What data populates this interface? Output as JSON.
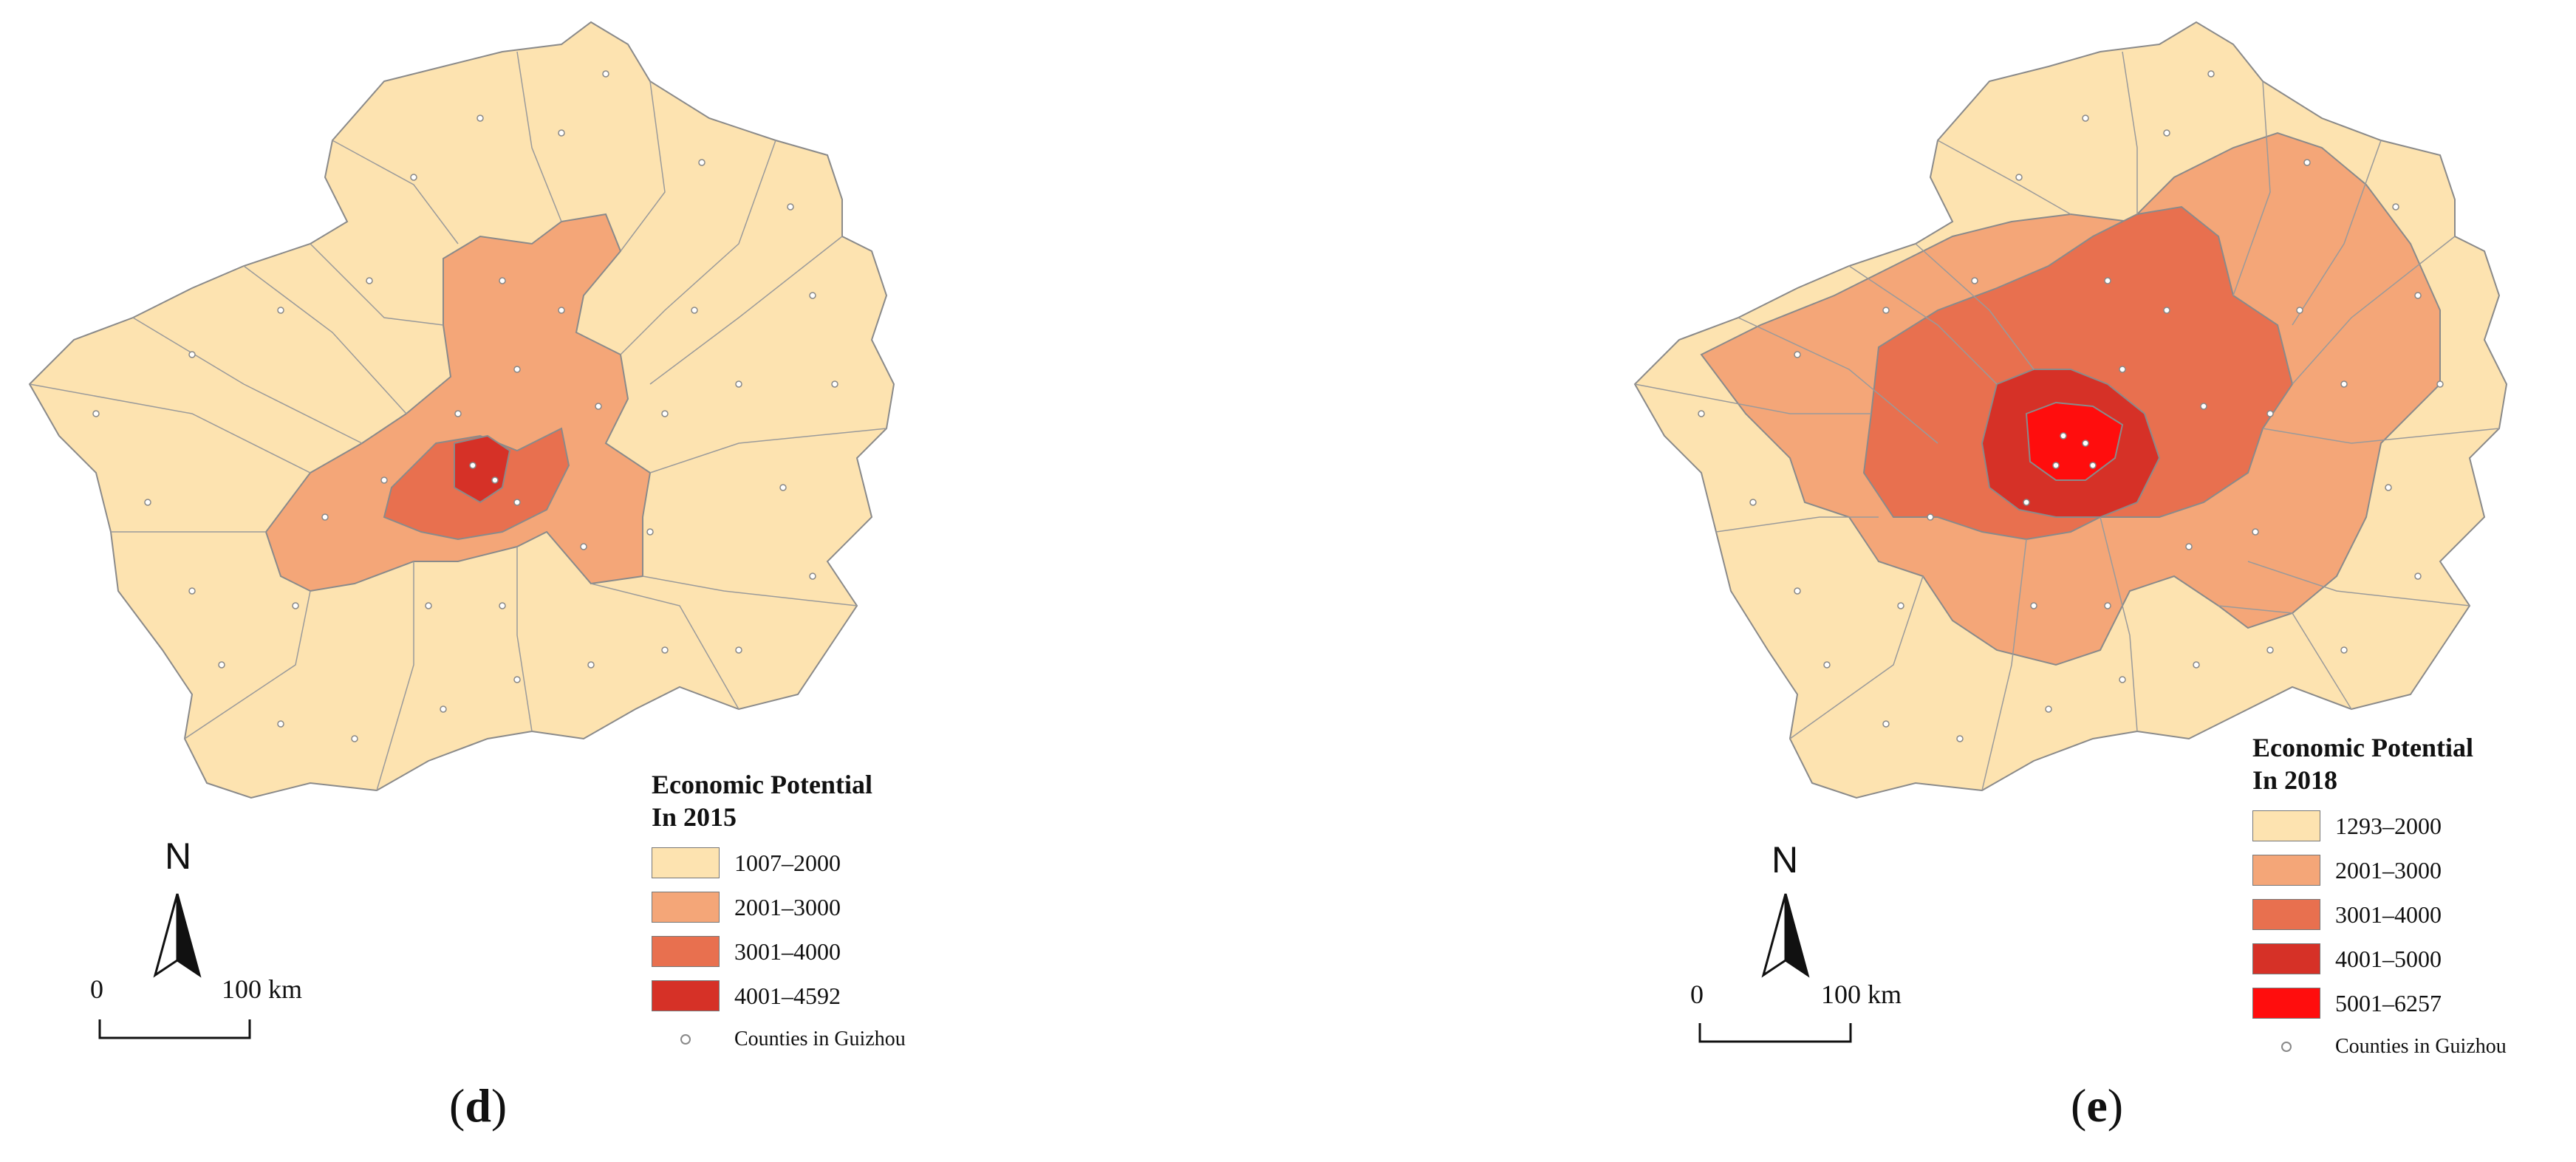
{
  "panels": [
    {
      "id": "d",
      "label_open": "(",
      "label_letter": "d",
      "label_close": ")",
      "legend": {
        "title_line1": "Economic Potential",
        "title_line2": "In 2015",
        "classes": [
          {
            "label": "1007–2000",
            "color": "#fde3b0"
          },
          {
            "label": "2001–3000",
            "color": "#f4a678"
          },
          {
            "label": "3001–4000",
            "color": "#e8704f"
          },
          {
            "label": "4001–4592",
            "color": "#d63127"
          }
        ],
        "county_label": "Counties in Guizhou"
      },
      "north_label": "N",
      "scale": {
        "zero": "0",
        "distance": "100 km"
      }
    },
    {
      "id": "e",
      "label_open": "(",
      "label_letter": "e",
      "label_close": ")",
      "legend": {
        "title_line1": "Economic Potential",
        "title_line2": "In 2018",
        "classes": [
          {
            "label": "1293–2000",
            "color": "#fde3b0"
          },
          {
            "label": "2001–3000",
            "color": "#f4a678"
          },
          {
            "label": "3001–4000",
            "color": "#e8704f"
          },
          {
            "label": "4001–5000",
            "color": "#d63127"
          },
          {
            "label": "5001–6257",
            "color": "#ff0d0d"
          }
        ],
        "county_label": "Counties in Guizhou"
      },
      "north_label": "N",
      "scale": {
        "zero": "0",
        "distance": "100 km"
      }
    }
  ]
}
